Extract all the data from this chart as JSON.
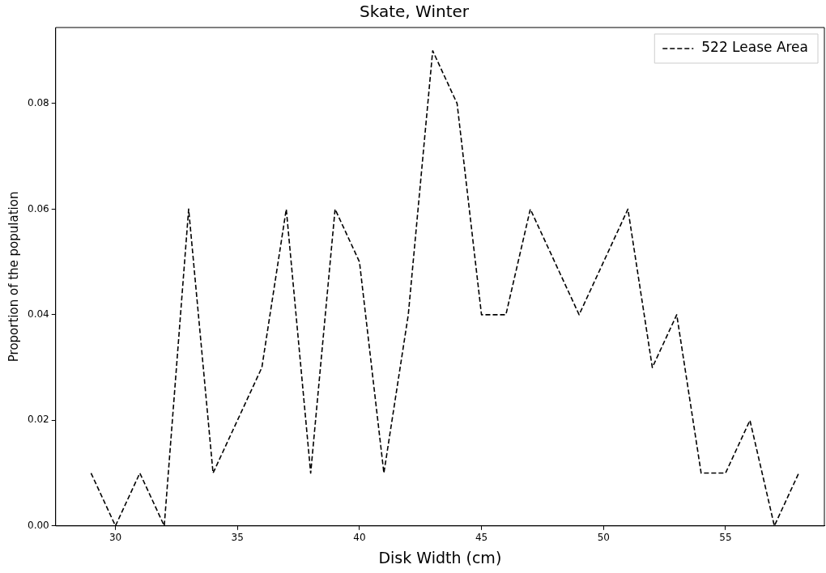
{
  "chart_data": {
    "type": "line",
    "title": "Skate, Winter",
    "xlabel": "Disk Width (cm)",
    "ylabel": "Proportion of the population",
    "x": [
      29,
      30,
      31,
      32,
      33,
      34,
      35,
      36,
      37,
      38,
      39,
      40,
      41,
      42,
      43,
      44,
      45,
      46,
      47,
      48,
      49,
      50,
      51,
      52,
      53,
      54,
      55,
      56,
      57,
      58
    ],
    "series": [
      {
        "name": "522 Lease Area",
        "color": "#000000",
        "line_style": "dashed",
        "values": [
          0.01,
          0,
          0.01,
          0,
          0.06,
          0.01,
          0.02,
          0.03,
          0.06,
          0.01,
          0.06,
          0.05,
          0.01,
          0.04,
          0.09,
          0.08,
          0.04,
          0.04,
          0.06,
          0.05,
          0.04,
          0.05,
          0.06,
          0.03,
          0.04,
          0.01,
          0.01,
          0.02,
          0,
          0.01
        ]
      }
    ],
    "xlim": [
      27.55,
      59.05
    ],
    "ylim": [
      0,
      0.0944
    ],
    "xticks": [
      30,
      35,
      40,
      45,
      50,
      55
    ],
    "yticks": [
      {
        "value": 0,
        "label": "0.00"
      },
      {
        "value": 0.02,
        "label": "0.02"
      },
      {
        "value": 0.04,
        "label": "0.04"
      },
      {
        "value": 0.06,
        "label": "0.06"
      },
      {
        "value": 0.08,
        "label": "0.08"
      }
    ],
    "grid": false,
    "legend": "top right",
    "marker": "none"
  }
}
